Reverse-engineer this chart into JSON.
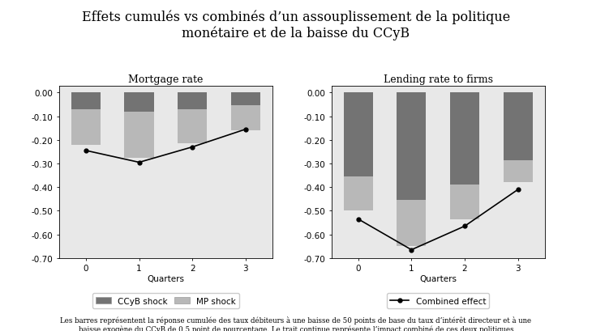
{
  "title": "Effets cumulés vs combinés d’un assouplissement de la politique\nmonétaire et de la baisse du CCyB",
  "title_fontsize": 11.5,
  "subplot_titles": [
    "Mortgage rate",
    "Lending rate to firms"
  ],
  "xlabel": "Quarters",
  "quarters": [
    0,
    1,
    2,
    3
  ],
  "mortgage": {
    "ccyb": [
      -0.07,
      -0.08,
      -0.07,
      -0.055
    ],
    "mp": [
      -0.15,
      -0.195,
      -0.145,
      -0.105
    ],
    "combined": [
      -0.245,
      -0.295,
      -0.23,
      -0.155
    ]
  },
  "lending": {
    "ccyb": [
      -0.355,
      -0.455,
      -0.39,
      -0.285
    ],
    "mp": [
      -0.145,
      -0.195,
      -0.145,
      -0.095
    ],
    "combined": [
      -0.535,
      -0.665,
      -0.565,
      -0.41
    ]
  },
  "ccyb_color": "#737373",
  "mp_color": "#b8b8b8",
  "line_color": "#000000",
  "ylim": [
    -0.7,
    0.03
  ],
  "yticks": [
    0.0,
    -0.1,
    -0.2,
    -0.3,
    -0.4,
    -0.5,
    -0.6,
    -0.7
  ],
  "bar_width": 0.55,
  "plot_bg_color": "#e8e8e8",
  "fig_bg_color": "#ffffff",
  "footnote": "Les barres représentent la réponse cumulée des taux débiteurs à une baisse de 50 points de base du taux d’intérêt directeur et à une\nbaisse exogène du CCyB de 0,5 point de pourcentage. Le trait continue représente l’impact combiné de ces deux politiques\nlorsqu’elles sont mises en œuvre simultanément. L’axe horizontal représente des trimestres."
}
